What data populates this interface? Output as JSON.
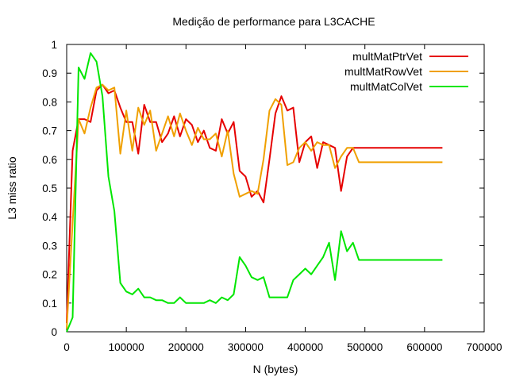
{
  "chart_data": {
    "type": "line",
    "title": "Medição de performance para L3CACHE",
    "xlabel": "N (bytes)",
    "ylabel": "L3 miss ratio",
    "xlim": [
      0,
      700000
    ],
    "ylim": [
      0,
      1
    ],
    "x_ticks": [
      "0",
      "100000",
      "200000",
      "300000",
      "400000",
      "500000",
      "600000",
      "700000"
    ],
    "y_ticks": [
      "0",
      "0.1",
      "0.2",
      "0.3",
      "0.4",
      "0.5",
      "0.6",
      "0.7",
      "0.8",
      "0.9",
      "1"
    ],
    "legend_position": "top-right",
    "x": [
      0,
      10000,
      20000,
      30000,
      40000,
      50000,
      60000,
      70000,
      80000,
      90000,
      100000,
      110000,
      120000,
      130000,
      140000,
      150000,
      160000,
      170000,
      180000,
      190000,
      200000,
      210000,
      220000,
      230000,
      240000,
      250000,
      260000,
      270000,
      280000,
      290000,
      300000,
      310000,
      320000,
      330000,
      340000,
      350000,
      360000,
      370000,
      380000,
      390000,
      400000,
      410000,
      420000,
      430000,
      440000,
      450000,
      460000,
      470000,
      480000,
      490000,
      500000,
      510000,
      520000,
      530000,
      540000,
      550000,
      560000,
      570000,
      580000,
      590000,
      600000,
      610000,
      620000,
      630000
    ],
    "series": [
      {
        "name": "multMatPtrVet",
        "color": "#e60000",
        "values": [
          0.03,
          0.63,
          0.74,
          0.74,
          0.73,
          0.84,
          0.86,
          0.83,
          0.84,
          0.78,
          0.73,
          0.73,
          0.62,
          0.79,
          0.73,
          0.73,
          0.66,
          0.69,
          0.75,
          0.68,
          0.74,
          0.72,
          0.66,
          0.7,
          0.64,
          0.63,
          0.74,
          0.69,
          0.73,
          0.56,
          0.54,
          0.47,
          0.49,
          0.45,
          0.6,
          0.76,
          0.82,
          0.77,
          0.78,
          0.59,
          0.66,
          0.68,
          0.57,
          0.66,
          0.65,
          0.64,
          0.49,
          0.61,
          0.64,
          0.64,
          0.64,
          0.64,
          0.64,
          0.64,
          0.64,
          0.64,
          0.64,
          0.64,
          0.64,
          0.64,
          0.64,
          0.64,
          0.64,
          0.64
        ]
      },
      {
        "name": "multMatRowVet",
        "color": "#f0a000",
        "values": [
          0.01,
          0.38,
          0.74,
          0.69,
          0.78,
          0.85,
          0.86,
          0.84,
          0.85,
          0.62,
          0.77,
          0.63,
          0.78,
          0.72,
          0.77,
          0.63,
          0.69,
          0.75,
          0.68,
          0.76,
          0.7,
          0.65,
          0.71,
          0.67,
          0.67,
          0.69,
          0.61,
          0.7,
          0.55,
          0.47,
          0.48,
          0.49,
          0.48,
          0.6,
          0.77,
          0.81,
          0.79,
          0.58,
          0.59,
          0.64,
          0.66,
          0.63,
          0.66,
          0.65,
          0.65,
          0.57,
          0.61,
          0.64,
          0.64,
          0.59,
          0.59,
          0.59,
          0.59,
          0.59,
          0.59,
          0.59,
          0.59,
          0.59,
          0.59,
          0.59,
          0.59,
          0.59,
          0.59,
          0.59
        ]
      },
      {
        "name": "multMatColVet",
        "color": "#00e600",
        "values": [
          0.0,
          0.05,
          0.92,
          0.88,
          0.97,
          0.94,
          0.82,
          0.54,
          0.42,
          0.17,
          0.14,
          0.13,
          0.15,
          0.12,
          0.12,
          0.11,
          0.11,
          0.1,
          0.1,
          0.12,
          0.1,
          0.1,
          0.1,
          0.1,
          0.11,
          0.1,
          0.12,
          0.11,
          0.13,
          0.26,
          0.23,
          0.19,
          0.18,
          0.19,
          0.12,
          0.12,
          0.12,
          0.12,
          0.18,
          0.2,
          0.22,
          0.2,
          0.23,
          0.26,
          0.31,
          0.18,
          0.35,
          0.28,
          0.31,
          0.25,
          0.25,
          0.25,
          0.25,
          0.25,
          0.25,
          0.25,
          0.25,
          0.25,
          0.25,
          0.25,
          0.25,
          0.25,
          0.25,
          0.25
        ]
      }
    ]
  }
}
